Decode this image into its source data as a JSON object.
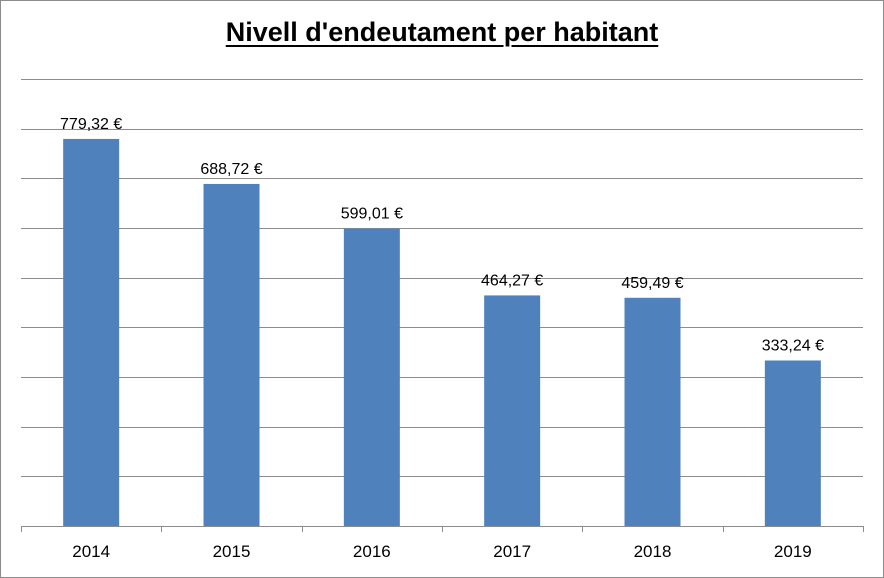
{
  "chart_data": {
    "type": "bar",
    "title": "Nivell d'endeutament per habitant",
    "categories": [
      "2014",
      "2015",
      "2016",
      "2017",
      "2018",
      "2019"
    ],
    "values": [
      779.32,
      688.72,
      599.01,
      464.27,
      459.49,
      333.24
    ],
    "data_labels": [
      "779,32 €",
      "688,72 €",
      "599,01 €",
      "464,27 €",
      "459,49 €",
      "333,24 €"
    ],
    "ylim": [
      0,
      900
    ],
    "grid": true,
    "legend": "none",
    "bar_color": "#4f81bd",
    "grid_color": "#8c8c8c"
  }
}
